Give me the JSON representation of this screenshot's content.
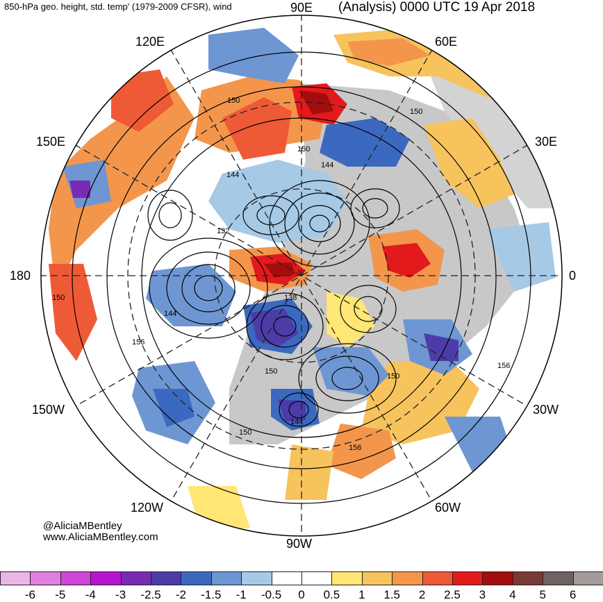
{
  "header": {
    "title_left": "850-hPa geo. height, std. temp' (1979-2009 CFSR), wind",
    "title_right": "(Analysis) 0000 UTC 19 Apr 2018"
  },
  "longitude_labels": {
    "lon_90e": "90E",
    "lon_120e": "120E",
    "lon_60e": "60E",
    "lon_150e": "150E",
    "lon_30e": "30E",
    "lon_180": "180",
    "lon_0": "0",
    "lon_150w": "150W",
    "lon_30w": "30W",
    "lon_120w": "120W",
    "lon_60w": "60W",
    "lon_90w": "90W"
  },
  "contour_labels": [
    "150",
    "144",
    "150",
    "144",
    "132",
    "138",
    "144",
    "156",
    "150",
    "150",
    "144",
    "150",
    "156",
    "156",
    "150",
    "150"
  ],
  "credit": {
    "handle": "@AliciaMBentley",
    "url": "www.AliciaMBentley.com"
  },
  "colorbar": {
    "ticks": [
      "-6",
      "-5",
      "-4",
      "-3",
      "-2.5",
      "-2",
      "-1.5",
      "-1",
      "-0.5",
      "0",
      "0.5",
      "1",
      "1.5",
      "2",
      "2.5",
      "3",
      "4",
      "5",
      "6"
    ],
    "colors": [
      "#e9b6e6",
      "#e07fe0",
      "#cf46d8",
      "#b515d0",
      "#7a2bb4",
      "#4b3ca8",
      "#3c69c0",
      "#6e96d2",
      "#a6c9e6",
      "#ffffff",
      "#ffffff",
      "#ffe675",
      "#f7c35d",
      "#f3964c",
      "#ef5a36",
      "#e31a1c",
      "#a30d0d",
      "#7a3a35",
      "#6f6262",
      "#a49b9b"
    ]
  },
  "colors": {
    "ocean_land_bg": "#ffffff",
    "land_masked": "#c8c8c8"
  }
}
